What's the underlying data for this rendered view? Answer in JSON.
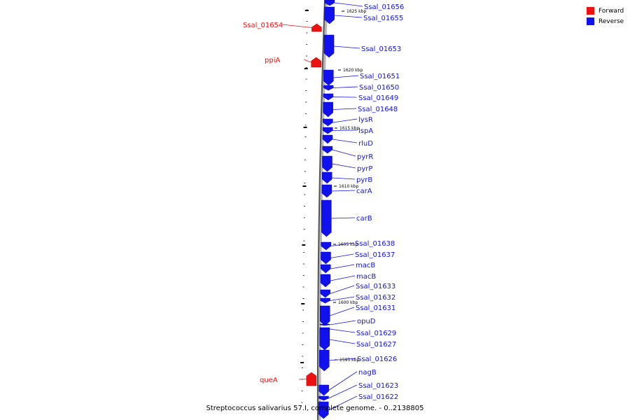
{
  "legend": {
    "forward": {
      "label": "Forward",
      "color": "#ee1111"
    },
    "reverse": {
      "label": "Reverse",
      "color": "#1111ee"
    }
  },
  "caption": "Streptococcus salivarius 57.I, complete genome. - 0..2138805",
  "ticks": [
    "1625 kbp",
    "1620 kbp",
    "1615 kbp",
    "1610 kbp",
    "1605 kbp",
    "1600 kbp",
    "1595 kbp"
  ],
  "genes": [
    {
      "name": "Ssal_01656",
      "strand": "reverse"
    },
    {
      "name": "Ssal_01655",
      "strand": "reverse"
    },
    {
      "name": "Ssal_01654",
      "strand": "forward"
    },
    {
      "name": "Ssal_01653",
      "strand": "reverse"
    },
    {
      "name": "ppiA",
      "strand": "forward"
    },
    {
      "name": "Ssal_01651",
      "strand": "reverse"
    },
    {
      "name": "Ssal_01650",
      "strand": "reverse"
    },
    {
      "name": "Ssal_01649",
      "strand": "reverse"
    },
    {
      "name": "Ssal_01648",
      "strand": "reverse"
    },
    {
      "name": "lysR",
      "strand": "reverse"
    },
    {
      "name": "lspA",
      "strand": "reverse"
    },
    {
      "name": "rluD",
      "strand": "reverse"
    },
    {
      "name": "pyrR",
      "strand": "reverse"
    },
    {
      "name": "pyrP",
      "strand": "reverse"
    },
    {
      "name": "pyrB",
      "strand": "reverse"
    },
    {
      "name": "carA",
      "strand": "reverse"
    },
    {
      "name": "carB",
      "strand": "reverse"
    },
    {
      "name": "Ssal_01638",
      "strand": "reverse"
    },
    {
      "name": "Ssal_01637",
      "strand": "reverse"
    },
    {
      "name": "macB",
      "strand": "reverse"
    },
    {
      "name": "macB",
      "strand": "reverse"
    },
    {
      "name": "Ssal_01633",
      "strand": "reverse"
    },
    {
      "name": "Ssal_01632",
      "strand": "reverse"
    },
    {
      "name": "Ssal_01631",
      "strand": "reverse"
    },
    {
      "name": "opuD",
      "strand": "reverse"
    },
    {
      "name": "Ssal_01629",
      "strand": "reverse"
    },
    {
      "name": "Ssal_01627",
      "strand": "reverse"
    },
    {
      "name": "Ssal_01626",
      "strand": "reverse"
    },
    {
      "name": "queA",
      "strand": "forward"
    },
    {
      "name": "nagB",
      "strand": "reverse"
    },
    {
      "name": "Ssal_01623",
      "strand": "reverse"
    },
    {
      "name": "Ssal_01622",
      "strand": "reverse"
    }
  ]
}
